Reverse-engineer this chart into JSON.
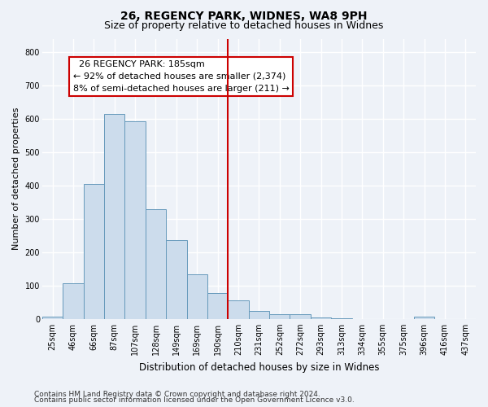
{
  "title": "26, REGENCY PARK, WIDNES, WA8 9PH",
  "subtitle": "Size of property relative to detached houses in Widnes",
  "xlabel": "Distribution of detached houses by size in Widnes",
  "ylabel": "Number of detached properties",
  "bin_labels": [
    "25sqm",
    "46sqm",
    "66sqm",
    "87sqm",
    "107sqm",
    "128sqm",
    "149sqm",
    "169sqm",
    "190sqm",
    "210sqm",
    "231sqm",
    "252sqm",
    "272sqm",
    "293sqm",
    "313sqm",
    "334sqm",
    "355sqm",
    "375sqm",
    "396sqm",
    "416sqm",
    "437sqm"
  ],
  "bar_heights": [
    8,
    108,
    405,
    615,
    593,
    328,
    236,
    133,
    78,
    55,
    25,
    13,
    15,
    5,
    3,
    0,
    0,
    0,
    8,
    0,
    0
  ],
  "bar_color": "#ccdcec",
  "bar_edge_color": "#6699bb",
  "bar_width": 1.0,
  "vline_x": 8.5,
  "vline_color": "#cc0000",
  "annotation_text": "  26 REGENCY PARK: 185sqm\n← 92% of detached houses are smaller (2,374)\n8% of semi-detached houses are larger (211) →",
  "annotation_box_color": "#ffffff",
  "annotation_box_edge_color": "#cc0000",
  "ylim": [
    0,
    840
  ],
  "yticks": [
    0,
    100,
    200,
    300,
    400,
    500,
    600,
    700,
    800
  ],
  "footer_line1": "Contains HM Land Registry data © Crown copyright and database right 2024.",
  "footer_line2": "Contains public sector information licensed under the Open Government Licence v3.0.",
  "background_color": "#eef2f8",
  "grid_color": "#ffffff",
  "title_fontsize": 10,
  "subtitle_fontsize": 9,
  "xlabel_fontsize": 8.5,
  "ylabel_fontsize": 8,
  "tick_fontsize": 7,
  "annotation_fontsize": 8,
  "footer_fontsize": 6.5
}
